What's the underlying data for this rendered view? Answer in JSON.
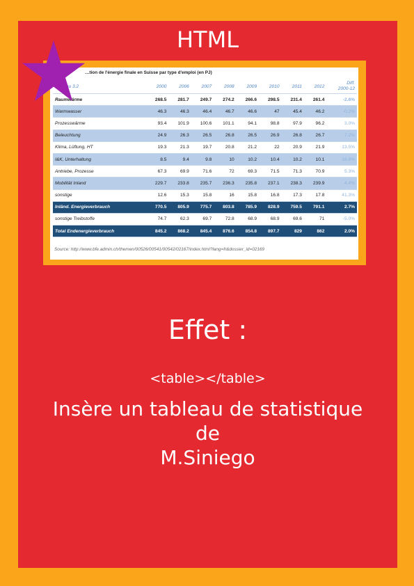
{
  "colors": {
    "border": "#fba51b",
    "card": "#e42a30",
    "text": "#ffffff",
    "star": "#a020b0",
    "table_dark": "#1f4e79",
    "table_blue": "#b7cde8"
  },
  "header": {
    "title": "HTML"
  },
  "table": {
    "caption": "…tion de l'énergie finale en Suisse par type d'emploi (en PJ)",
    "corner_label": "Tableau 3.2",
    "years": [
      "2000",
      "2006",
      "2007",
      "2008",
      "2009",
      "2010",
      "2011",
      "2012"
    ],
    "diff_header_line1": "Diff.",
    "diff_header_line2": "2000-12",
    "rows": [
      {
        "label": "Raumwärme",
        "values": [
          "268.5",
          "281.7",
          "249.7",
          "274.2",
          "266.6",
          "298.5",
          "231.4",
          "261.4"
        ],
        "diff": "-2.6%",
        "style": "bold"
      },
      {
        "label": "Warmwasser",
        "values": [
          "46.3",
          "46.3",
          "46.4",
          "46.7",
          "46.6",
          "47",
          "45.4",
          "46.2"
        ],
        "diff": "-0.2%",
        "style": "blue"
      },
      {
        "label": "Prozesswärme",
        "values": [
          "93.4",
          "101.9",
          "100.6",
          "101.1",
          "94.1",
          "98.8",
          "97.9",
          "96.2"
        ],
        "diff": "3.0%",
        "style": "plain"
      },
      {
        "label": "Beleuchtung",
        "values": [
          "24.9",
          "26.3",
          "26.5",
          "26.8",
          "26.5",
          "26.9",
          "26.8",
          "26.7"
        ],
        "diff": "7.2%",
        "style": "blue"
      },
      {
        "label": "Klima, Lüftung, HT",
        "values": [
          "19.3",
          "21.3",
          "19.7",
          "20.8",
          "21.2",
          "22",
          "20.9",
          "21.9"
        ],
        "diff": "13.5%",
        "style": "plain"
      },
      {
        "label": "I&K, Unterhaltung",
        "values": [
          "8.5",
          "9.4",
          "9.8",
          "10",
          "10.2",
          "10.4",
          "10.2",
          "10.1"
        ],
        "diff": "18.8%",
        "style": "blue"
      },
      {
        "label": "Antriebe, Prozesse",
        "values": [
          "67.3",
          "69.9",
          "71.6",
          "72",
          "69.3",
          "71.5",
          "71.3",
          "70.9"
        ],
        "diff": "5.3%",
        "style": "plain"
      },
      {
        "label": "Mobilität Inland",
        "values": [
          "229.7",
          "233.8",
          "235.7",
          "236.3",
          "235.8",
          "237.1",
          "238.3",
          "239.9"
        ],
        "diff": "4.4%",
        "style": "blue"
      },
      {
        "label": "sonstige",
        "values": [
          "12.6",
          "15.3",
          "15.8",
          "16",
          "15.8",
          "16.8",
          "17.3",
          "17.8"
        ],
        "diff": "41.3%",
        "style": "plain"
      },
      {
        "label": "Inländ. Energieverbrauch",
        "values": [
          "770.5",
          "805.9",
          "775.7",
          "803.8",
          "785.9",
          "828.9",
          "759.5",
          "791.1"
        ],
        "diff": "2.7%",
        "style": "dark"
      },
      {
        "label": "sonstige Treibstoffe",
        "values": [
          "74.7",
          "62.3",
          "69.7",
          "72.8",
          "68.9",
          "68.9",
          "69.6",
          "71"
        ],
        "diff": "-5.0%",
        "style": "plain"
      },
      {
        "label": "Total Endenergieverbrauch",
        "values": [
          "845.2",
          "868.2",
          "845.4",
          "876.6",
          "854.8",
          "897.7",
          "829",
          "862"
        ],
        "diff": "2.0%",
        "style": "dark"
      }
    ],
    "source": "Source: http://www.bfe.admin.ch/themen/00526/00541/00542/02167/index.html?lang=fr&dossier_id=02169"
  },
  "effect": {
    "title": "Effet :",
    "code": "<table></table>",
    "line1": "Insère un tableau de statistique",
    "line2": "de",
    "line3": "M.Siniego"
  }
}
